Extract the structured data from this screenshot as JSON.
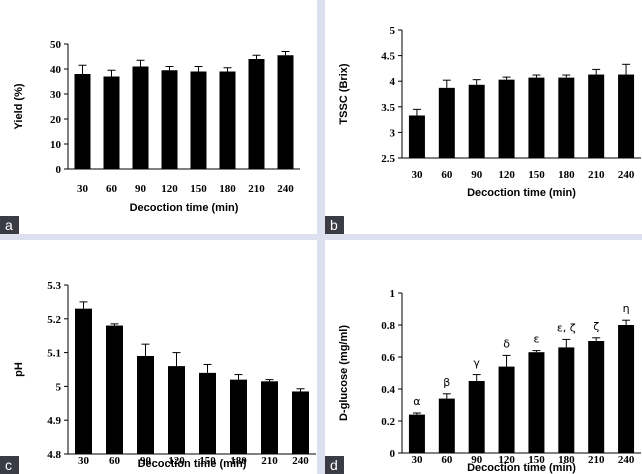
{
  "chart_data": [
    {
      "panel": "a",
      "type": "bar",
      "categories": [
        "30",
        "60",
        "90",
        "120",
        "150",
        "180",
        "210",
        "240"
      ],
      "values": [
        38,
        37,
        41,
        39.5,
        39,
        39,
        44,
        45.5
      ],
      "errors": [
        3.5,
        2.5,
        2.5,
        1.5,
        2,
        1.5,
        1.5,
        1.5
      ],
      "xlabel": "Decoction time (min)",
      "ylabel": "Yield (%)",
      "ylim": [
        0,
        50
      ],
      "yticks": [
        "0",
        "10",
        "20",
        "30",
        "40",
        "50"
      ],
      "ytick_values": [
        0,
        10,
        20,
        30,
        40,
        50
      ],
      "annotations": []
    },
    {
      "panel": "b",
      "type": "bar",
      "categories": [
        "30",
        "60",
        "90",
        "120",
        "150",
        "180",
        "210",
        "240"
      ],
      "values": [
        3.33,
        3.87,
        3.93,
        4.03,
        4.07,
        4.07,
        4.13,
        4.13
      ],
      "errors": [
        0.12,
        0.15,
        0.1,
        0.05,
        0.05,
        0.05,
        0.1,
        0.2
      ],
      "xlabel": "Decoction time (min)",
      "ylabel": "TSSC (Brix)",
      "ylim": [
        2.5,
        5
      ],
      "yticks": [
        "2.5",
        "3",
        "3.5",
        "4",
        "4.5",
        "5"
      ],
      "ytick_values": [
        2.5,
        3,
        3.5,
        4,
        4.5,
        5
      ],
      "annotations": []
    },
    {
      "panel": "c",
      "type": "bar",
      "categories": [
        "30",
        "60",
        "90",
        "120",
        "150",
        "180",
        "210",
        "240"
      ],
      "values": [
        5.23,
        5.18,
        5.09,
        5.06,
        5.04,
        5.02,
        5.015,
        4.985
      ],
      "errors": [
        0.02,
        0.005,
        0.035,
        0.04,
        0.025,
        0.015,
        0.005,
        0.008
      ],
      "xlabel": "Decoction time (min)",
      "ylabel": "pH",
      "ylim": [
        4.8,
        5.3
      ],
      "yticks": [
        "4.8",
        "4.9",
        "5",
        "5.1",
        "5.2",
        "5.3"
      ],
      "ytick_values": [
        4.8,
        4.9,
        5.0,
        5.1,
        5.2,
        5.3
      ],
      "annotations": []
    },
    {
      "panel": "d",
      "type": "bar",
      "categories": [
        "30",
        "60",
        "90",
        "120",
        "150",
        "180",
        "210",
        "240"
      ],
      "values": [
        0.24,
        0.34,
        0.45,
        0.54,
        0.63,
        0.66,
        0.7,
        0.8
      ],
      "errors": [
        0.01,
        0.03,
        0.04,
        0.07,
        0.01,
        0.05,
        0.02,
        0.03
      ],
      "xlabel": "Decoction time (min)",
      "ylabel": "D-glucose (mg/ml)",
      "ylim": [
        0,
        1
      ],
      "yticks": [
        "0",
        "0.2",
        "0.4",
        "0.6",
        "0.8",
        "1"
      ],
      "ytick_values": [
        0,
        0.2,
        0.4,
        0.6,
        0.8,
        1
      ],
      "annotations": [
        "α",
        "β",
        "γ",
        "δ",
        "ε",
        "ε, ζ",
        "ζ",
        "η"
      ]
    }
  ],
  "panel_labels": {
    "a": "a",
    "b": "b",
    "c": "c",
    "d": "d"
  }
}
